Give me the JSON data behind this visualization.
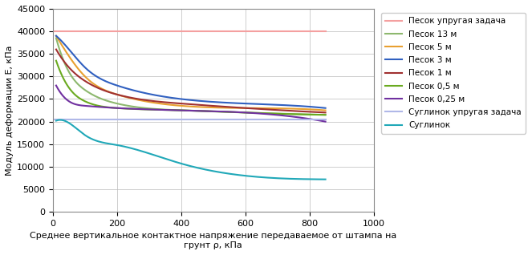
{
  "title": "",
  "xlabel_line1": "Среднее вертикальное контактное напряжение передаваемое от штампа на",
  "xlabel_line2": "грунт ρ, кПа",
  "ylabel": "Модуль деформации E, кПа",
  "xlim": [
    0,
    1000
  ],
  "ylim": [
    0,
    45000
  ],
  "xticks": [
    0,
    200,
    400,
    600,
    800,
    1000
  ],
  "yticks": [
    0,
    5000,
    10000,
    15000,
    20000,
    25000,
    30000,
    35000,
    40000,
    45000
  ],
  "series": [
    {
      "label": "Песок упругая задача",
      "color": "#f4a0a0",
      "x": [
        0,
        850
      ],
      "y": [
        40000,
        40000
      ]
    },
    {
      "label": "Песок 13 м",
      "color": "#8db86e",
      "x": [
        10,
        50,
        100,
        200,
        400,
        600,
        850
      ],
      "y": [
        38500,
        31000,
        27000,
        24000,
        22500,
        22000,
        21500
      ]
    },
    {
      "label": "Песок 5 м",
      "color": "#e8a030",
      "x": [
        10,
        50,
        100,
        200,
        400,
        600,
        850
      ],
      "y": [
        39000,
        34500,
        30000,
        26000,
        23500,
        23000,
        22500
      ]
    },
    {
      "label": "Песок 3 м",
      "color": "#3060c0",
      "x": [
        10,
        50,
        100,
        200,
        400,
        600,
        850
      ],
      "y": [
        39000,
        36000,
        32000,
        28000,
        25000,
        24000,
        23000
      ]
    },
    {
      "label": "Песок 1 м",
      "color": "#a03030",
      "x": [
        10,
        50,
        100,
        200,
        400,
        600,
        850
      ],
      "y": [
        36000,
        32000,
        29000,
        26000,
        24000,
        23000,
        22000
      ]
    },
    {
      "label": "Песок 0,5 м",
      "color": "#6aaa20",
      "x": [
        10,
        50,
        100,
        200,
        400,
        600,
        850
      ],
      "y": [
        33500,
        27500,
        24500,
        23000,
        22500,
        22000,
        21500
      ]
    },
    {
      "label": "Песок 0,25 м",
      "color": "#7030a0",
      "x": [
        10,
        50,
        100,
        200,
        400,
        600,
        850
      ],
      "y": [
        28000,
        24500,
        23500,
        23000,
        22500,
        22000,
        20000
      ]
    },
    {
      "label": "Суглинок упругая задача",
      "color": "#b0b8e8",
      "x": [
        0,
        850
      ],
      "y": [
        20500,
        20500
      ]
    },
    {
      "label": "Суглинок",
      "color": "#20a8b8",
      "x": [
        10,
        50,
        100,
        200,
        400,
        600,
        850
      ],
      "y": [
        20200,
        19700,
        17000,
        14800,
        10700,
        8000,
        7200
      ]
    }
  ],
  "legend_fontsize": 7.5,
  "axis_fontsize": 8,
  "tick_fontsize": 8,
  "xlabel_fontsize": 8
}
